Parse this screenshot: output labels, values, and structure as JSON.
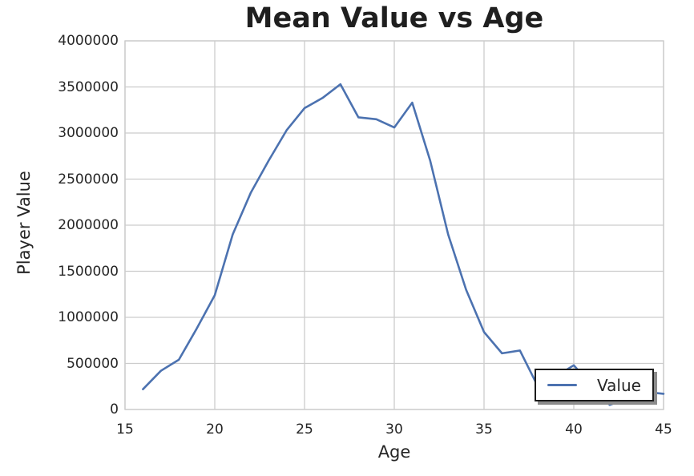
{
  "chart_data": {
    "type": "line",
    "title": "Mean Value vs Age",
    "xlabel": "Age",
    "ylabel": "Player Value",
    "xlim": [
      15,
      45
    ],
    "ylim": [
      0,
      4000000
    ],
    "xticks": [
      15,
      20,
      25,
      30,
      35,
      40,
      45
    ],
    "yticks": [
      0,
      500000,
      1000000,
      1500000,
      2000000,
      2500000,
      3000000,
      3500000,
      4000000
    ],
    "grid": true,
    "legend_position": "lower right",
    "x": [
      16,
      17,
      18,
      19,
      20,
      21,
      22,
      23,
      24,
      25,
      26,
      27,
      28,
      29,
      30,
      31,
      32,
      33,
      34,
      35,
      36,
      37,
      38,
      39,
      40,
      41,
      42,
      43,
      44,
      45
    ],
    "series": [
      {
        "name": "Value",
        "color": "#4c72b0",
        "values": [
          220000,
          420000,
          540000,
          880000,
          1240000,
          1900000,
          2350000,
          2700000,
          3030000,
          3270000,
          3380000,
          3530000,
          3170000,
          3150000,
          3060000,
          3330000,
          2700000,
          1900000,
          1300000,
          840000,
          610000,
          640000,
          250000,
          360000,
          480000,
          260000,
          50000,
          120000,
          190000,
          170000
        ]
      }
    ]
  },
  "style": {
    "background": "#ffffff",
    "line_color": "#4c72b0",
    "grid_color": "#cccccc",
    "text_color": "#262626",
    "title_color": "#1f1f1f",
    "legend_border_color": "#1c1c1c",
    "legend_shadow_color": "#8c8c8c"
  }
}
